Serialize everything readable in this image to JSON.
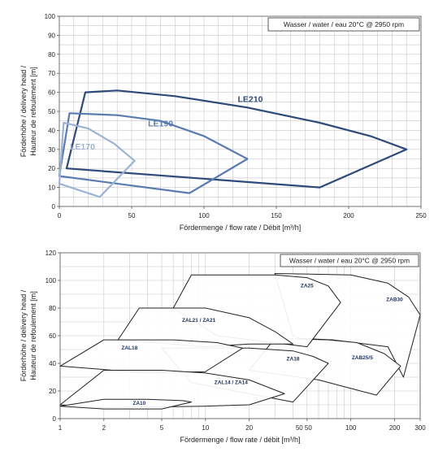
{
  "chart_data": [
    {
      "type": "area",
      "note": "Wasser / water / eau 20°C @ 2950 rpm",
      "xlabel": "Fördermenge / flow rate / Débit [m³/h]",
      "ylabel_lines": [
        "Förderhöhe / delivery head /",
        "Hauteur de refoulement [m]"
      ],
      "xlim": [
        0,
        250
      ],
      "ylim": [
        0,
        100
      ],
      "xticks": [
        0,
        50,
        100,
        150,
        200,
        250
      ],
      "yticks": [
        0,
        10,
        20,
        30,
        40,
        50,
        60,
        70,
        80,
        90,
        100
      ],
      "grid": true,
      "x_scale": "linear",
      "regions": [
        {
          "name": "LE210",
          "color": "#2e4a7a",
          "label_at": [
            132,
            55
          ],
          "points": [
            [
              18,
              60
            ],
            [
              40,
              61
            ],
            [
              80,
              58
            ],
            [
              130,
              52
            ],
            [
              180,
              44
            ],
            [
              215,
              37
            ],
            [
              240,
              30
            ],
            [
              180,
              10
            ],
            [
              5,
              20
            ]
          ]
        },
        {
          "name": "LE190",
          "color": "#5a7cb0",
          "label_at": [
            70,
            42
          ],
          "points": [
            [
              7,
              49
            ],
            [
              40,
              48
            ],
            [
              70,
              45
            ],
            [
              100,
              37
            ],
            [
              130,
              25
            ],
            [
              90,
              7
            ],
            [
              0,
              16
            ]
          ]
        },
        {
          "name": "LE170",
          "color": "#9db3d4",
          "label_at": [
            16,
            30
          ],
          "points": [
            [
              3,
              44
            ],
            [
              20,
              41
            ],
            [
              38,
              33
            ],
            [
              52,
              24
            ],
            [
              28,
              5
            ],
            [
              0,
              12
            ]
          ]
        }
      ]
    },
    {
      "type": "area",
      "note": "Wasser / water / eau 20°C @ 2950 rpm",
      "xlabel": "Fördermenge / flow rate / débit [m³/h]",
      "ylabel_lines": [
        "Förderhöhe / delivery head /",
        "Hauteur de refoulement [m]"
      ],
      "xlim": [
        1,
        300
      ],
      "ylim": [
        0,
        120
      ],
      "x_scale": "log",
      "xticks": [
        1,
        2,
        5,
        10,
        20,
        50,
        100,
        200,
        300
      ],
      "xtick_labels": [
        "1",
        "2",
        "5",
        "10",
        "20",
        "50 50",
        "100",
        "200",
        "300"
      ],
      "yticks": [
        0,
        20,
        40,
        60,
        80,
        100,
        120
      ],
      "grid": true,
      "regions": [
        {
          "name": "ZAB30",
          "label_at": [
            200,
            85
          ],
          "points": [
            [
              30,
              105
            ],
            [
              100,
              104
            ],
            [
              180,
              98
            ],
            [
              250,
              88
            ],
            [
              300,
              75
            ],
            [
              230,
              30
            ],
            [
              180,
              52
            ],
            [
              75,
              57
            ],
            [
              45,
              58
            ],
            [
              40,
              60
            ]
          ]
        },
        {
          "name": "ZAB25/5",
          "label_at": [
            120,
            43
          ],
          "points": [
            [
              30,
              58
            ],
            [
              70,
              57
            ],
            [
              110,
              55
            ],
            [
              170,
              47
            ],
            [
              220,
              38
            ],
            [
              150,
              17
            ],
            [
              60,
              28
            ],
            [
              20,
              35
            ]
          ]
        },
        {
          "name": "ZA25",
          "label_at": [
            50,
            95
          ],
          "points": [
            [
              8,
              104
            ],
            [
              30,
              104
            ],
            [
              50,
              102
            ],
            [
              70,
              96
            ],
            [
              85,
              84
            ],
            [
              50,
              52
            ],
            [
              12,
              60
            ],
            [
              6,
              80
            ]
          ]
        },
        {
          "name": "ZAL21 / ZA21",
          "label_at": [
            9,
            70
          ],
          "points": [
            [
              3.5,
              80
            ],
            [
              10,
              80
            ],
            [
              20,
              73
            ],
            [
              30,
              63
            ],
            [
              40,
              54
            ],
            [
              20,
              54
            ],
            [
              10,
              52
            ],
            [
              2.5,
              57
            ]
          ]
        },
        {
          "name": "ZA18",
          "label_at": [
            40,
            42
          ],
          "points": [
            [
              5,
              51
            ],
            [
              20,
              51
            ],
            [
              40,
              49
            ],
            [
              55,
              45
            ],
            [
              70,
              40
            ],
            [
              40,
              12
            ],
            [
              20,
              18
            ],
            [
              8,
              26
            ]
          ]
        },
        {
          "name": "ZAL18",
          "label_at": [
            3,
            50
          ],
          "points": [
            [
              2,
              57
            ],
            [
              6,
              57
            ],
            [
              12,
              55
            ],
            [
              18,
              51
            ],
            [
              10,
              34
            ],
            [
              4,
              33
            ],
            [
              1,
              38
            ]
          ]
        },
        {
          "name": "ZAL14 / ZA14",
          "label_at": [
            15,
            25
          ],
          "points": [
            [
              2,
              35
            ],
            [
              5,
              35
            ],
            [
              10,
              33
            ],
            [
              20,
              28
            ],
            [
              35,
              18
            ],
            [
              20,
              10
            ],
            [
              10,
              9
            ],
            [
              2,
              8
            ],
            [
              1,
              10
            ]
          ]
        },
        {
          "name": "ZA10",
          "label_at": [
            3.5,
            10
          ],
          "points": [
            [
              2,
              14
            ],
            [
              4,
              14
            ],
            [
              7,
              13
            ],
            [
              8,
              12
            ],
            [
              5,
              7
            ],
            [
              2,
              7
            ],
            [
              1,
              9
            ]
          ]
        }
      ]
    }
  ]
}
